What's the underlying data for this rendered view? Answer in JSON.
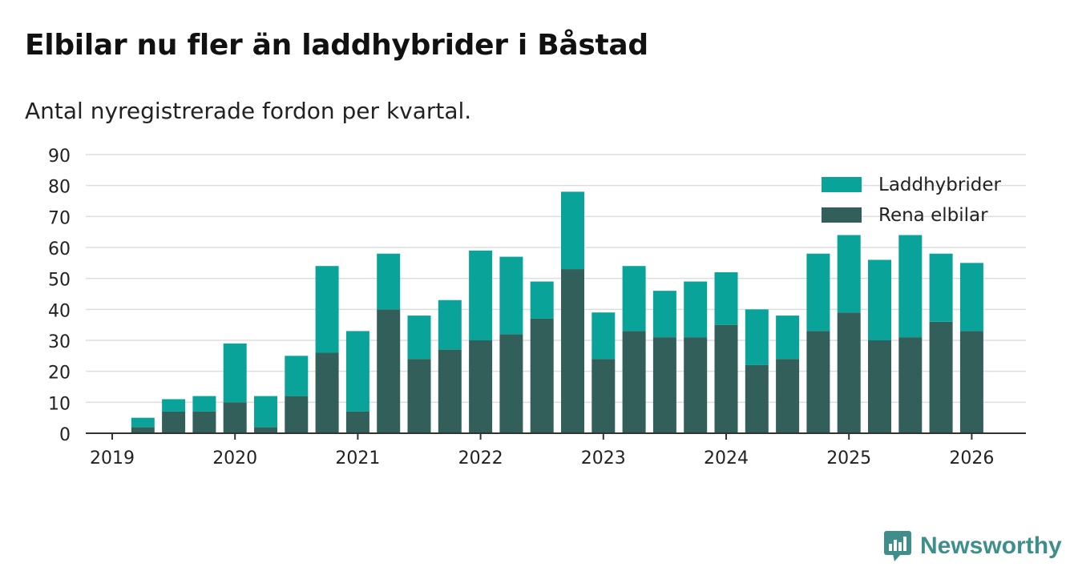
{
  "title": "Elbilar nu fler än laddhybrider i Båstad",
  "subtitle": "Antal nyregistrerade fordon per kvartal.",
  "brand": {
    "name": "Newsworthy",
    "icon": "bar-chart-speech-bubble-icon"
  },
  "colors": {
    "laddhybrider": "#0aa39a",
    "rena_elbilar": "#335f5a",
    "grid": "#dddddd",
    "axis": "#333333",
    "text": "#222222",
    "brand": "#3e8f8b"
  },
  "chart_data": {
    "type": "bar",
    "stacked": true,
    "x_ticks": [
      "2019",
      "2020",
      "2021",
      "2022",
      "2023",
      "2024",
      "2025",
      "2026"
    ],
    "categories": [
      "2019 Q1",
      "2019 Q2",
      "2019 Q3",
      "2019 Q4",
      "2020 Q1",
      "2020 Q2",
      "2020 Q3",
      "2020 Q4",
      "2021 Q1",
      "2021 Q2",
      "2021 Q3",
      "2021 Q4",
      "2022 Q1",
      "2022 Q2",
      "2022 Q3",
      "2022 Q4",
      "2023 Q1",
      "2023 Q2",
      "2023 Q3",
      "2023 Q4",
      "2024 Q1",
      "2024 Q2",
      "2024 Q3",
      "2024 Q4",
      "2025 Q1",
      "2025 Q2",
      "2025 Q3",
      "2025 Q4",
      "2026 Q1"
    ],
    "series": [
      {
        "name": "Rena elbilar",
        "color": "#335f5a",
        "values": [
          0,
          2,
          7,
          7,
          10,
          2,
          12,
          26,
          7,
          40,
          24,
          27,
          30,
          32,
          37,
          53,
          24,
          33,
          31,
          31,
          35,
          22,
          24,
          33,
          39,
          30,
          31,
          36,
          33
        ]
      },
      {
        "name": "Laddhybrider",
        "color": "#0aa39a",
        "values": [
          0,
          3,
          4,
          5,
          19,
          10,
          13,
          28,
          26,
          18,
          14,
          16,
          29,
          25,
          12,
          25,
          15,
          21,
          15,
          18,
          17,
          18,
          14,
          25,
          25,
          26,
          33,
          22,
          22
        ]
      }
    ],
    "ylim": [
      0,
      90
    ],
    "y_ticks": [
      0,
      10,
      20,
      30,
      40,
      50,
      60,
      70,
      80,
      90
    ],
    "legend": [
      {
        "name": "Laddhybrider",
        "color": "#0aa39a"
      },
      {
        "name": "Rena elbilar",
        "color": "#335f5a"
      }
    ],
    "legend_position": "top-right",
    "grid": true
  }
}
